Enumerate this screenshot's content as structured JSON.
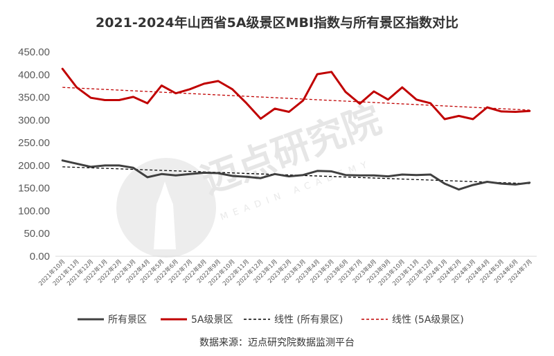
{
  "chart_data": {
    "type": "line",
    "title": "2021-2024年山西省5A级景区MBI指数与所有景区指数对比",
    "categories": [
      "2021年10月",
      "2021年11月",
      "2021年12月",
      "2022年1月",
      "2022年2月",
      "2022年3月",
      "2022年4月",
      "2022年5月",
      "2022年6月",
      "2022年7月",
      "2022年8月",
      "2022年9月",
      "2022年10月",
      "2022年11月",
      "2022年12月",
      "2023年1月",
      "2023年2月",
      "2023年3月",
      "2023年4月",
      "2023年5月",
      "2023年6月",
      "2023年7月",
      "2023年8月",
      "2023年9月",
      "2023年10月",
      "2023年11月",
      "2023年12月",
      "2024年1月",
      "2024年2月",
      "2024年3月",
      "2024年4月",
      "2024年5月",
      "2024年6月",
      "2024年7月"
    ],
    "y_ticks": [
      "0.00",
      "50.00",
      "100.00",
      "150.00",
      "200.00",
      "250.00",
      "300.00",
      "350.00",
      "400.00",
      "450.00"
    ],
    "ylim": [
      0,
      450
    ],
    "grid": false,
    "legend_position": "bottom",
    "series": [
      {
        "name": "所有景区",
        "color": "#404040",
        "values": [
          211,
          204,
          197,
          200,
          200,
          195,
          174,
          181,
          178,
          181,
          184,
          183,
          177,
          175,
          172,
          181,
          176,
          179,
          188,
          187,
          179,
          178,
          178,
          176,
          180,
          179,
          180,
          160,
          147,
          157,
          164,
          160,
          158,
          162
        ]
      },
      {
        "name": "5A级景区",
        "color": "#c00000",
        "values": [
          413,
          372,
          349,
          344,
          344,
          351,
          337,
          376,
          359,
          368,
          380,
          386,
          368,
          337,
          303,
          325,
          318,
          343,
          401,
          406,
          362,
          336,
          363,
          345,
          372,
          345,
          337,
          302,
          309,
          302,
          328,
          319,
          318,
          320
        ]
      }
    ],
    "trendlines": [
      {
        "name": "线性 (所有景区)",
        "color": "#000000",
        "from": 197,
        "to": 160
      },
      {
        "name": "线性 (5A级景区)",
        "color": "#c00000",
        "from": 372,
        "to": 322
      }
    ]
  },
  "source": "数据来源：迈点研究院数据监测平台",
  "watermark": {
    "text": "迈点研究院",
    "sub": "MEADIN ACADEMY"
  }
}
